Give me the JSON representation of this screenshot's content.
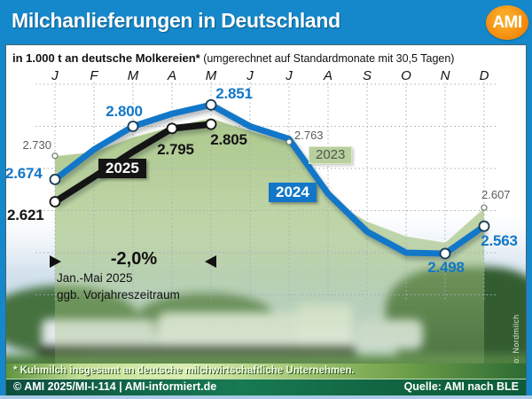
{
  "header": {
    "title": "Milchanlieferungen in Deutschland",
    "logo": "AMI"
  },
  "subtitle": {
    "bold": "in 1.000 t an deutsche Molkereien*",
    "normal": "(umgerechnet auf Standardmonate mit 30,5 Tagen)"
  },
  "months": [
    "J",
    "F",
    "M",
    "A",
    "M",
    "J",
    "J",
    "A",
    "S",
    "O",
    "N",
    "D"
  ],
  "series_tags": {
    "y2023": "2023",
    "y2024": "2024",
    "y2025": "2025"
  },
  "point_labels": {
    "p2023_jan": "2.730",
    "p2023_jul": "2.763",
    "p2023_dez": "2.607",
    "p2024_jan": "2.674",
    "p2024_mar": "2.800",
    "p2024_mai": "2.851",
    "p2024_nov": "2.498",
    "p2024_dez": "2.563",
    "p2025_jan": "2.621",
    "p2025_apr": "2.795",
    "p2025_mai": "2.805"
  },
  "annotation": {
    "percent": "-2,0%",
    "line1": "Jan.-Mai 2025",
    "line2": "ggb. Vorjahreszeitraum"
  },
  "footnote": "* Kuhmilch insgesamt an deutsche milchwirtschaftliche Unternehmen.",
  "footer": {
    "left": "© AMI 2025/MI-I-114 | AMI-informiert.de",
    "right": "Quelle: AMI nach BLE"
  },
  "photo_credit": "Foto: Nordmilch",
  "colors": {
    "header_blue": "#1588cb",
    "accent_blue": "#1277c8",
    "line_black": "#141414",
    "area_green": "#a7c47f",
    "logo_orange": "#ef8205",
    "footer_green": "#116440"
  },
  "chart_data": {
    "type": "line",
    "title": "Milchanlieferungen in Deutschland",
    "subtitle": "in 1.000 t an deutsche Molkereien* (umgerechnet auf Standardmonate mit 30,5 Tagen)",
    "unit": "1.000 t",
    "categories": [
      "J",
      "F",
      "M",
      "A",
      "M",
      "J",
      "J",
      "A",
      "S",
      "O",
      "N",
      "D"
    ],
    "ylim": [
      2400,
      2900
    ],
    "grid": true,
    "legend_position": "inline-boxes",
    "series": [
      {
        "name": "2023",
        "type": "area",
        "color": "#a7c47f",
        "values": [
          2730,
          2740,
          2775,
          2800,
          2820,
          2790,
          2763,
          2630,
          2575,
          2540,
          2525,
          2607
        ],
        "labeled_values": {
          "Jan": 2730,
          "Jul": 2763,
          "Dez": 2607
        },
        "markers": [
          0,
          6,
          11
        ]
      },
      {
        "name": "2024",
        "type": "line",
        "color": "#1277c8",
        "values": [
          2674,
          2745,
          2800,
          2830,
          2851,
          2800,
          2770,
          2640,
          2550,
          2500,
          2498,
          2563
        ],
        "labeled_values": {
          "Jan": 2674,
          "Mrz": 2800,
          "Mai": 2851,
          "Nov": 2498,
          "Dez": 2563
        },
        "markers": [
          0,
          2,
          4,
          10,
          11
        ]
      },
      {
        "name": "2025",
        "type": "line",
        "color": "#141414",
        "values": [
          2621,
          2680,
          2740,
          2795,
          2805
        ],
        "labeled_values": {
          "Jan": 2621,
          "Apr": 2795,
          "Mai": 2805
        },
        "markers": [
          0,
          3,
          4
        ]
      }
    ],
    "annotation": {
      "text": "-2,0% Jan.-Mai 2025 ggb. Vorjahreszeitraum",
      "span_months": [
        "Jan",
        "Mai"
      ]
    }
  }
}
